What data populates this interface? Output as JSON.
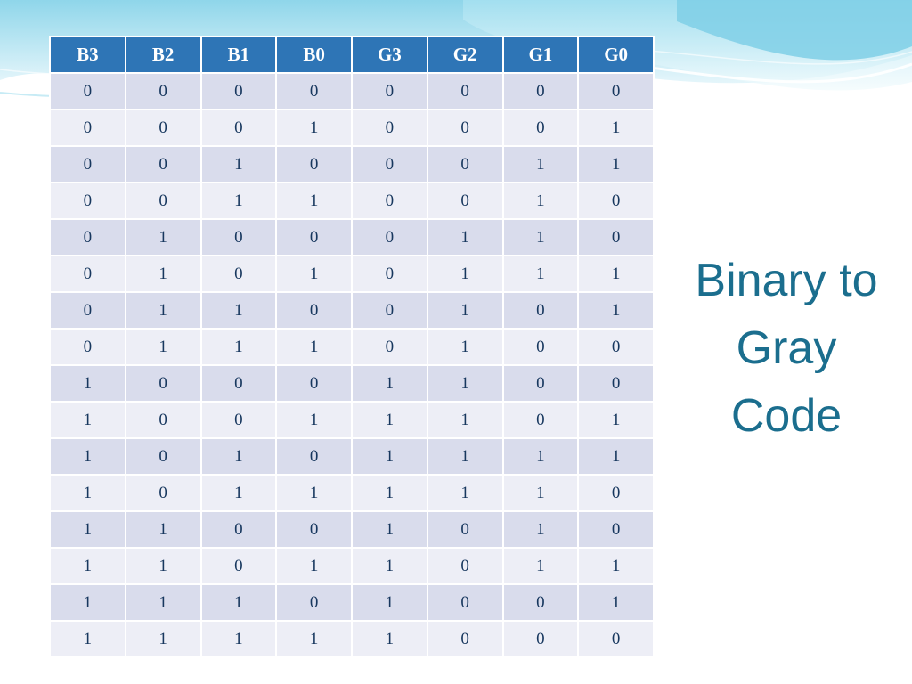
{
  "slide": {
    "title_lines": [
      "Binary to",
      "Gray",
      "Code"
    ],
    "title_color": "#1B6E8E"
  },
  "table": {
    "header_bg": "#2E75B6",
    "row_odd_bg": "#D9DCEC",
    "row_even_bg": "#EDEEF6",
    "cell_color": "#17375E",
    "headers": [
      "B3",
      "B2",
      "B1",
      "B0",
      "G3",
      "G2",
      "G1",
      "G0"
    ],
    "rows": [
      [
        "0",
        "0",
        "0",
        "0",
        "0",
        "0",
        "0",
        "0"
      ],
      [
        "0",
        "0",
        "0",
        "1",
        "0",
        "0",
        "0",
        "1"
      ],
      [
        "0",
        "0",
        "1",
        "0",
        "0",
        "0",
        "1",
        "1"
      ],
      [
        "0",
        "0",
        "1",
        "1",
        "0",
        "0",
        "1",
        "0"
      ],
      [
        "0",
        "1",
        "0",
        "0",
        "0",
        "1",
        "1",
        "0"
      ],
      [
        "0",
        "1",
        "0",
        "1",
        "0",
        "1",
        "1",
        "1"
      ],
      [
        "0",
        "1",
        "1",
        "0",
        "0",
        "1",
        "0",
        "1"
      ],
      [
        "0",
        "1",
        "1",
        "1",
        "0",
        "1",
        "0",
        "0"
      ],
      [
        "1",
        "0",
        "0",
        "0",
        "1",
        "1",
        "0",
        "0"
      ],
      [
        "1",
        "0",
        "0",
        "1",
        "1",
        "1",
        "0",
        "1"
      ],
      [
        "1",
        "0",
        "1",
        "0",
        "1",
        "1",
        "1",
        "1"
      ],
      [
        "1",
        "0",
        "1",
        "1",
        "1",
        "1",
        "1",
        "0"
      ],
      [
        "1",
        "1",
        "0",
        "0",
        "1",
        "0",
        "1",
        "0"
      ],
      [
        "1",
        "1",
        "0",
        "1",
        "1",
        "0",
        "1",
        "1"
      ],
      [
        "1",
        "1",
        "1",
        "0",
        "1",
        "0",
        "0",
        "1"
      ],
      [
        "1",
        "1",
        "1",
        "1",
        "1",
        "0",
        "0",
        "0"
      ]
    ]
  },
  "decoration": {
    "wave_color_dark": "#7FCFE6",
    "wave_color_light": "#C9EDF6"
  }
}
